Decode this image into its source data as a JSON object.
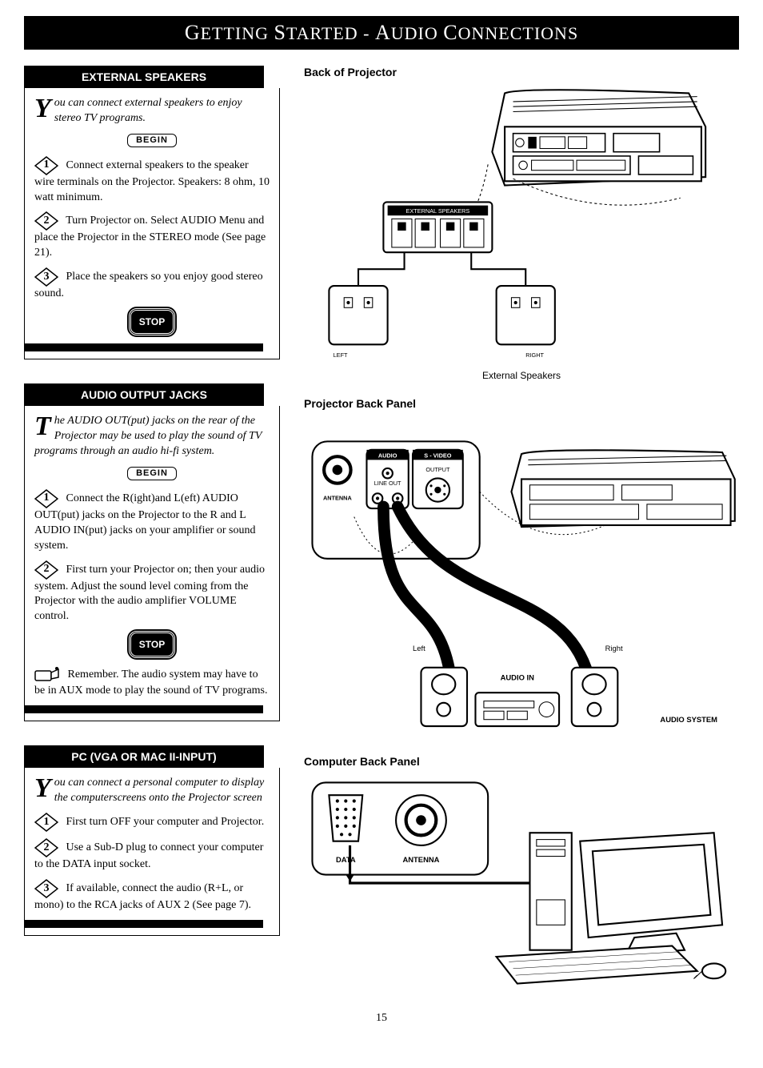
{
  "page_title_html": "<span class='big'>G</span>ETTING <span class='big'>S</span>TARTED - <span class='big'>A</span>UDIO <span class='big'>C</span>ONNECTIONS",
  "begin_label": "BEGIN",
  "stop_label": "STOP",
  "page_number": "15",
  "sec1": {
    "header": "EXTERNAL SPEAKERS",
    "intro_first": "Y",
    "intro_rest": "ou can connect external speakers to enjoy stereo TV programs.",
    "step1": "Connect external speakers to the speaker wire terminals on the Projector. Speakers: 8 ohm, 10 watt minimum.",
    "step2": "Turn Projector on. Select AUDIO Menu and place the Projector in the STEREO mode (See page 21).",
    "step3": "Place the speakers so you enjoy good stereo sound."
  },
  "sec2": {
    "header": "AUDIO OUTPUT JACKS",
    "intro_first": "T",
    "intro_rest": "he AUDIO OUT(put) jacks on the rear of the Projector may be used to play the sound of TV programs through an audio hi-fi system.",
    "step1": "Connect the R(ight)and L(eft) AUDIO OUT(put) jacks on the Projector to the R and L AUDIO IN(put) jacks on your amplifier or sound system.",
    "step2": "First turn your Projector on; then your audio system. Adjust the sound level coming from the Projector with the audio amplifier VOLUME control.",
    "note": "Remember. The audio system may have to be in AUX mode to play the sound of TV programs."
  },
  "sec3": {
    "header": "PC (VGA OR MAC II-INPUT)",
    "intro_first": "Y",
    "intro_rest": " ou can connect a personal computer to display the computerscreens onto the Projector screen",
    "step1": "First turn OFF your computer and Projector.",
    "step2": "Use a Sub-D plug to connect your computer to the DATA input socket.",
    "step3": "If available, connect the audio (R+L, or mono) to the RCA jacks of AUX 2 (See page 7)."
  },
  "fig1": {
    "label": "Back of Projector",
    "caption": "External Speakers",
    "panel_label": "EXTERNAL SPEAKERS",
    "left": "LEFT",
    "right": "RIGHT"
  },
  "fig2": {
    "label": "Projector Back Panel",
    "audio_label": "AUDIO",
    "svideo_label": "S - VIDEO",
    "antenna_label": "ANTENNA",
    "lineout": "LINE OUT",
    "output": "OUTPUT",
    "left": "Left",
    "right": "Right",
    "audio_in": "AUDIO IN",
    "audio_system": "AUDIO SYSTEM"
  },
  "fig3": {
    "label": "Computer Back Panel",
    "data": "DATA",
    "antenna": "ANTENNA"
  },
  "colors": {
    "black": "#000000",
    "white": "#ffffff",
    "gray": "#888888"
  }
}
